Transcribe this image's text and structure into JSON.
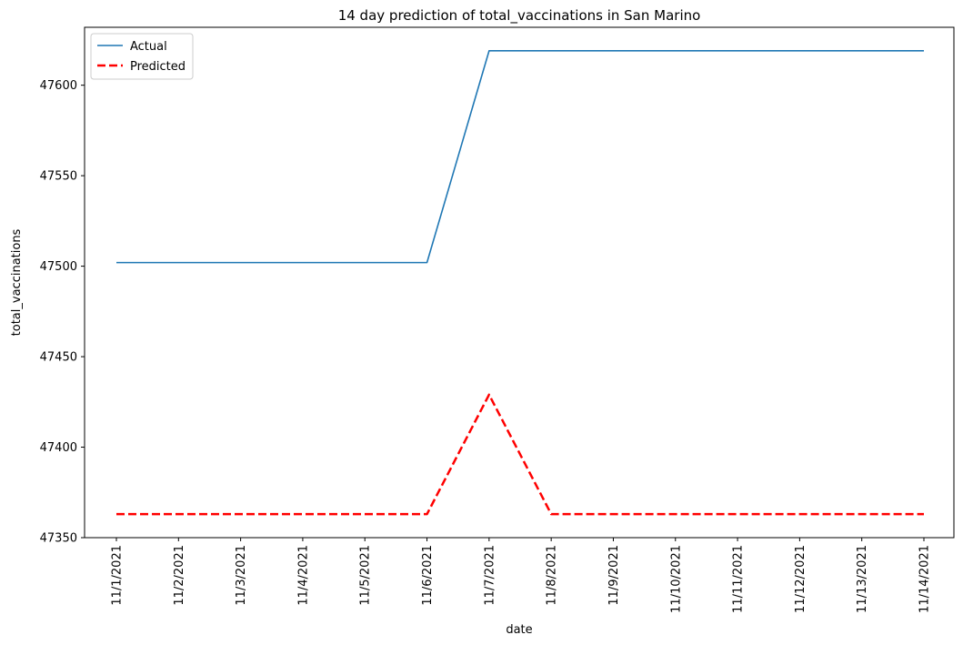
{
  "chart_data": {
    "type": "line",
    "title": "14 day prediction of total_vaccinations in San Marino",
    "xlabel": "date",
    "ylabel": "total_vaccinations",
    "categories": [
      "11/1/2021",
      "11/2/2021",
      "11/3/2021",
      "11/4/2021",
      "11/5/2021",
      "11/6/2021",
      "11/7/2021",
      "11/8/2021",
      "11/9/2021",
      "11/10/2021",
      "11/11/2021",
      "11/12/2021",
      "11/13/2021",
      "11/14/2021"
    ],
    "ylim": [
      47350,
      47632
    ],
    "yticks": [
      47350,
      47400,
      47450,
      47500,
      47550,
      47600
    ],
    "series": [
      {
        "name": "Actual",
        "color": "#1f77b4",
        "style": "solid",
        "values": [
          47502,
          47502,
          47502,
          47502,
          47502,
          47502,
          47619,
          47619,
          47619,
          47619,
          47619,
          47619,
          47619,
          47619
        ]
      },
      {
        "name": "Predicted",
        "color": "#ff0000",
        "style": "dashed",
        "values": [
          47363,
          47363,
          47363,
          47363,
          47363,
          47363,
          47429,
          47363,
          47363,
          47363,
          47363,
          47363,
          47363,
          47363
        ]
      }
    ],
    "legend": "top-left",
    "grid": false
  }
}
